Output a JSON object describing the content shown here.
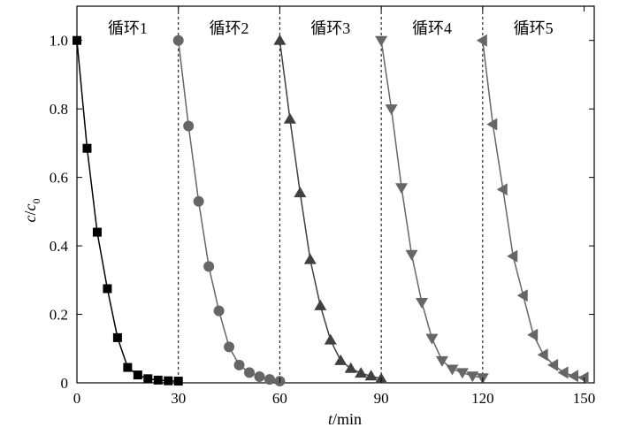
{
  "chart_data": {
    "type": "line",
    "xlabel": {
      "italic": "t",
      "rest": "/min"
    },
    "ylabel": {
      "italic": "c",
      "slash": "/",
      "italic2": "c",
      "sub": "0"
    },
    "xlim": [
      0,
      153
    ],
    "ylim": [
      0,
      1.1
    ],
    "xticks": [
      0,
      30,
      60,
      90,
      120,
      150
    ],
    "yticks": [
      0,
      0.2,
      0.4,
      0.6,
      0.8,
      1.0
    ],
    "ytick_labels": [
      "0",
      "0.2",
      "0.4",
      "0.6",
      "0.8",
      "1.0"
    ],
    "separators": [
      30,
      60,
      90,
      120
    ],
    "cycle_labels": [
      {
        "text": "循环1",
        "x": 15
      },
      {
        "text": "循环2",
        "x": 45
      },
      {
        "text": "循环3",
        "x": 75
      },
      {
        "text": "循环4",
        "x": 105
      },
      {
        "text": "循环5",
        "x": 135
      }
    ],
    "series": [
      {
        "marker": "square",
        "color": "#000000",
        "x": [
          0,
          3,
          6,
          9,
          12,
          15,
          18,
          21,
          24,
          27,
          30
        ],
        "y": [
          1.0,
          0.685,
          0.44,
          0.275,
          0.132,
          0.045,
          0.023,
          0.012,
          0.008,
          0.006,
          0.005
        ]
      },
      {
        "marker": "circle",
        "color": "#666666",
        "x": [
          30,
          33,
          36,
          39,
          42,
          45,
          48,
          51,
          54,
          57,
          60
        ],
        "y": [
          1.0,
          0.75,
          0.53,
          0.34,
          0.21,
          0.105,
          0.052,
          0.03,
          0.018,
          0.01,
          0.005
        ]
      },
      {
        "marker": "triangle-up",
        "color": "#404040",
        "x": [
          60,
          63,
          66,
          69,
          72,
          75,
          78,
          81,
          84,
          87,
          90
        ],
        "y": [
          1.0,
          0.77,
          0.555,
          0.36,
          0.225,
          0.125,
          0.065,
          0.042,
          0.028,
          0.02,
          0.012
        ]
      },
      {
        "marker": "triangle-down",
        "color": "#666666",
        "x": [
          90,
          93,
          96,
          99,
          102,
          105,
          108,
          111,
          114,
          117,
          120
        ],
        "y": [
          1.0,
          0.8,
          0.57,
          0.375,
          0.235,
          0.13,
          0.065,
          0.04,
          0.03,
          0.02,
          0.015
        ]
      },
      {
        "marker": "triangle-left",
        "color": "#666666",
        "x": [
          120,
          123,
          126,
          129,
          132,
          135,
          138,
          141,
          144,
          147,
          150
        ],
        "y": [
          1.0,
          0.755,
          0.565,
          0.37,
          0.255,
          0.14,
          0.082,
          0.052,
          0.03,
          0.02,
          0.015
        ]
      }
    ]
  }
}
